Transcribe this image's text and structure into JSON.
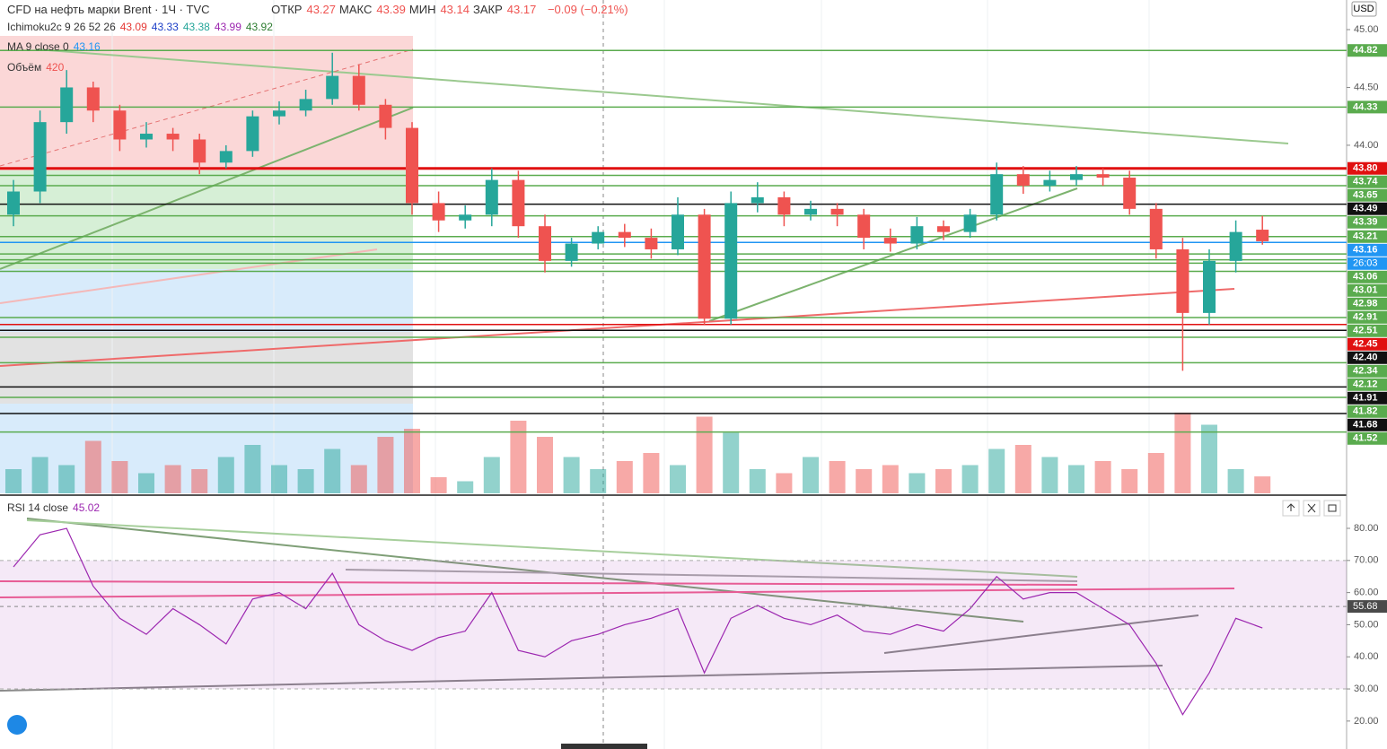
{
  "header": {
    "title": "CFD на нефть марки Brent · 1Ч · TVC",
    "ohlc": [
      {
        "label": "ОТКР",
        "value": 43.27
      },
      {
        "label": "МАКС",
        "value": 43.39
      },
      {
        "label": "МИН",
        "value": 43.14
      },
      {
        "label": "ЗАКР",
        "value": 43.17
      }
    ],
    "change": "−0.09 (−0.21%)"
  },
  "chart_data": [
    {
      "type": "candlestick",
      "currency": "USD",
      "ylim": [
        40.99,
        45.256
      ],
      "yticks": [
        {
          "value": 45,
          "label": "45.00"
        },
        {
          "value": 44.5,
          "label": "44.50"
        },
        {
          "value": 44,
          "label": "44.00"
        }
      ],
      "up_color": "#26a69a",
      "down_color": "#ef5350",
      "open": [
        43.4,
        43.6,
        44.2,
        44.5,
        44.3,
        44.05,
        44.1,
        44.05,
        43.85,
        43.95,
        44.25,
        44.3,
        44.4,
        44.6,
        44.35,
        44.15,
        43.5,
        43.35,
        43.4,
        43.7,
        43.3,
        43.0,
        43.15,
        43.25,
        43.2,
        43.1,
        43.4,
        42.5,
        43.5,
        43.55,
        43.4,
        43.45,
        43.4,
        43.2,
        43.15,
        43.3,
        43.25,
        43.4,
        43.75,
        43.65,
        43.7,
        43.75,
        43.72,
        43.45,
        43.1,
        42.55,
        43.0,
        43.27
      ],
      "high": [
        43.7,
        44.3,
        44.65,
        44.55,
        44.35,
        44.2,
        44.15,
        44.1,
        44.0,
        44.3,
        44.38,
        44.48,
        44.8,
        44.7,
        44.4,
        44.2,
        43.6,
        43.48,
        43.8,
        43.78,
        43.4,
        43.2,
        43.3,
        43.32,
        43.28,
        43.55,
        43.45,
        43.6,
        43.68,
        43.6,
        43.52,
        43.5,
        43.45,
        43.28,
        43.38,
        43.35,
        43.45,
        43.85,
        43.82,
        43.78,
        43.82,
        43.8,
        43.78,
        43.5,
        43.2,
        43.1,
        43.35,
        43.39
      ],
      "low": [
        43.3,
        43.5,
        44.1,
        44.2,
        43.95,
        43.98,
        43.95,
        43.75,
        43.8,
        43.9,
        44.18,
        44.25,
        44.35,
        44.3,
        44.05,
        43.4,
        43.25,
        43.28,
        43.3,
        43.2,
        42.9,
        42.95,
        43.1,
        43.12,
        43.02,
        43.05,
        42.45,
        42.45,
        43.42,
        43.3,
        43.35,
        43.3,
        43.1,
        43.08,
        43.1,
        43.18,
        43.2,
        43.35,
        43.58,
        43.6,
        43.65,
        43.65,
        43.4,
        43.02,
        42.05,
        42.45,
        42.9,
        43.14
      ],
      "close": [
        43.6,
        44.2,
        44.5,
        44.3,
        44.05,
        44.1,
        44.05,
        43.85,
        43.95,
        44.25,
        44.3,
        44.4,
        44.6,
        44.35,
        44.15,
        43.5,
        43.35,
        43.4,
        43.7,
        43.3,
        43.0,
        43.15,
        43.25,
        43.2,
        43.1,
        43.4,
        42.5,
        43.5,
        43.55,
        43.4,
        43.45,
        43.4,
        43.2,
        43.15,
        43.3,
        43.25,
        43.4,
        43.75,
        43.65,
        43.7,
        43.75,
        43.72,
        43.45,
        43.1,
        42.55,
        43.0,
        43.25,
        43.17
      ],
      "indicators": [
        {
          "name": "Ichimoku2c 9 26 52 26",
          "values": [
            43.09,
            43.33,
            43.38,
            43.99,
            43.92
          ],
          "colors": [
            "#e53935",
            "#1e40c8",
            "#26a69a",
            "#9c27b0",
            "#2e7d32"
          ]
        },
        {
          "name": "MA 9 close 0",
          "values": [
            43.16
          ],
          "colors": [
            "#2196f3"
          ]
        }
      ],
      "volume": {
        "name": "Объём",
        "legend_value": 420,
        "values": [
          600,
          900,
          700,
          1300,
          800,
          500,
          700,
          600,
          900,
          1200,
          700,
          600,
          1100,
          700,
          1400,
          1600,
          400,
          300,
          900,
          1800,
          1400,
          900,
          600,
          800,
          1000,
          700,
          1900,
          1500,
          600,
          500,
          900,
          800,
          600,
          700,
          500,
          600,
          700,
          1100,
          1200,
          900,
          700,
          800,
          600,
          1000,
          2000,
          1700,
          600,
          420
        ]
      },
      "levels": [
        {
          "value": 44.82,
          "color": "#5aab4e"
        },
        {
          "value": 44.33,
          "color": "#5aab4e"
        },
        {
          "value": 43.8,
          "label": "43.80",
          "color": "#e01010"
        },
        {
          "value": 43.74,
          "color": "#5aab4e"
        },
        {
          "value": 43.65,
          "color": "#5aab4e"
        },
        {
          "value": 43.49,
          "color": "#111111"
        },
        {
          "value": 43.39,
          "color": "#5aab4e"
        },
        {
          "value": 43.21,
          "color": "#5aab4e"
        },
        {
          "value": 43.16,
          "color": "#2196f3"
        },
        {
          "value": 43.06,
          "color": "#5aab4e"
        },
        {
          "value": 43.01,
          "color": "#5aab4e"
        },
        {
          "value": 42.98,
          "color": "#5aab4e"
        },
        {
          "value": 42.91,
          "color": "#5aab4e"
        },
        {
          "value": 42.51,
          "color": "#5aab4e"
        },
        {
          "value": 42.45,
          "color": "#e01010"
        },
        {
          "value": 42.4,
          "label": "42.40",
          "color": "#111111"
        },
        {
          "value": 42.34,
          "color": "#5aab4e"
        },
        {
          "value": 42.12,
          "color": "#5aab4e"
        },
        {
          "value": 41.91,
          "color": "#111111"
        },
        {
          "value": 41.82,
          "color": "#5aab4e"
        },
        {
          "value": 41.68,
          "color": "#111111"
        },
        {
          "value": 41.52,
          "color": "#5aab4e"
        }
      ],
      "countdown": "26:03"
    },
    {
      "type": "line",
      "name": "RSI 14 close",
      "legend_value": 45.02,
      "color": "#9c27b0",
      "ylim": [
        11.3,
        89.5
      ],
      "yticks": [
        {
          "value": 80,
          "label": "80.00"
        },
        {
          "value": 70,
          "label": "70.00"
        },
        {
          "value": 60,
          "label": "60.00"
        },
        {
          "value": 50,
          "label": "50.00"
        },
        {
          "value": 40,
          "label": "40.00"
        },
        {
          "value": 30,
          "label": "30.00"
        },
        {
          "value": 20,
          "label": "20.00"
        }
      ],
      "band": [
        30,
        70
      ],
      "values": [
        68,
        78,
        80,
        62,
        52,
        47,
        55,
        50,
        44,
        58,
        60,
        55,
        66,
        50,
        45,
        42,
        46,
        48,
        60,
        42,
        40,
        45,
        47,
        50,
        52,
        55,
        35,
        52,
        56,
        52,
        50,
        53,
        48,
        47,
        50,
        48,
        55,
        65,
        58,
        60,
        60,
        55,
        50,
        38,
        22,
        35,
        52,
        49
      ],
      "crosshair": 55.68
    }
  ]
}
